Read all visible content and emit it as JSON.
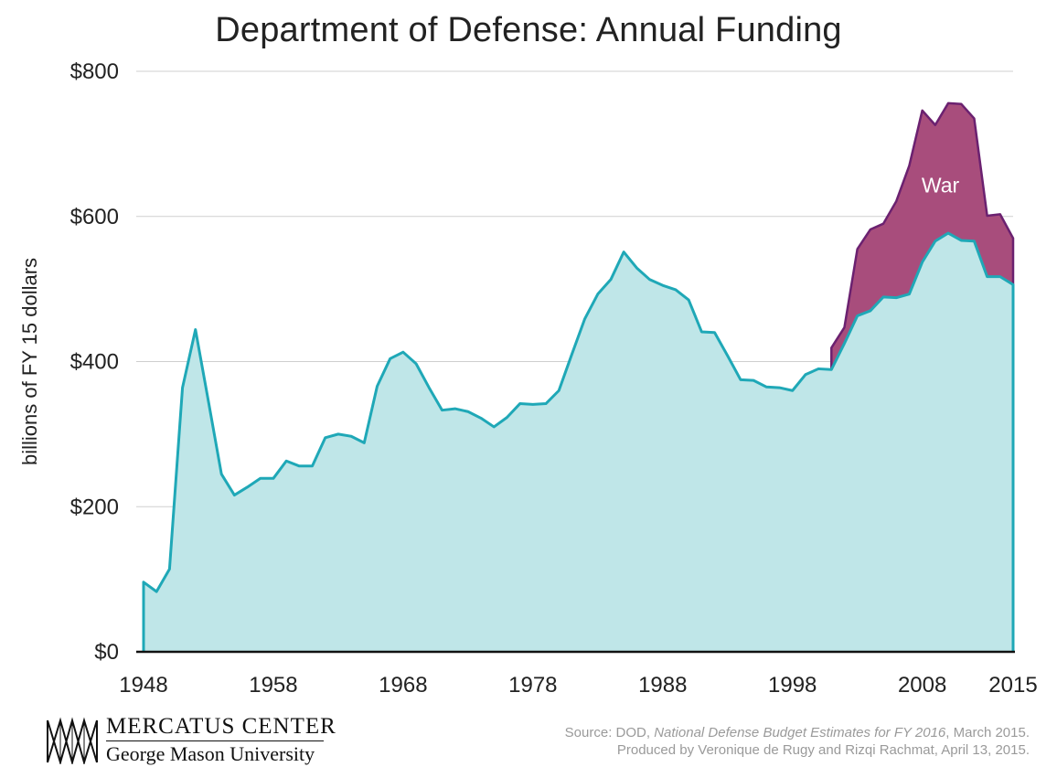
{
  "title": "Department of Defense: Annual Funding",
  "logo": {
    "line1": "MERCATUS CENTER",
    "line2": "George Mason University"
  },
  "source": {
    "prefix": "Source: DOD, ",
    "publication": "National Defense Budget Estimates for FY 2016",
    "suffix": ", March 2015.",
    "line2": "Produced by Veronique de Rugy and Rizqi Rachmat, April 13, 2015."
  },
  "colors": {
    "base_fill": "#bfe6e8",
    "base_line": "#1fa8b7",
    "war_fill": "#a84d7c",
    "war_line": "#6b2170",
    "grid": "#cfcfcf",
    "axis": "#111111"
  },
  "chart_data": {
    "type": "area",
    "title": "Department of Defense: Annual Funding",
    "ylabel": "billions of FY 15 dollars",
    "xlabel": "",
    "xlim": [
      1948,
      2015
    ],
    "ylim": [
      0,
      800
    ],
    "grid": true,
    "y_ticks": [
      "$0",
      "$200",
      "$400",
      "$600",
      "$800"
    ],
    "y_tick_values": [
      0,
      200,
      400,
      600,
      800
    ],
    "x_ticks": [
      "1948",
      "1958",
      "1968",
      "1978",
      "1988",
      "1998",
      "2008",
      "2015"
    ],
    "x_tick_values": [
      1948,
      1958,
      1968,
      1978,
      1988,
      1998,
      2008,
      2015
    ],
    "annotations": [
      {
        "text": "War",
        "x": 2009.4,
        "y": 643
      }
    ],
    "x": [
      1948,
      1949,
      1950,
      1951,
      1952,
      1953,
      1954,
      1955,
      1956,
      1957,
      1958,
      1959,
      1960,
      1961,
      1962,
      1963,
      1964,
      1965,
      1966,
      1967,
      1968,
      1969,
      1970,
      1971,
      1972,
      1973,
      1974,
      1975,
      1976,
      1977,
      1978,
      1979,
      1980,
      1981,
      1982,
      1983,
      1984,
      1985,
      1986,
      1987,
      1988,
      1989,
      1990,
      1991,
      1992,
      1993,
      1994,
      1995,
      1996,
      1997,
      1998,
      1999,
      2000,
      2001,
      2002,
      2003,
      2004,
      2005,
      2006,
      2007,
      2008,
      2009,
      2010,
      2011,
      2012,
      2013,
      2014,
      2015
    ],
    "series": [
      {
        "name": "",
        "values": [
          96,
          83,
          114,
          364,
          444,
          345,
          245,
          216,
          227,
          239,
          239,
          263,
          256,
          256,
          295,
          300,
          297,
          288,
          366,
          404,
          413,
          397,
          364,
          333,
          335,
          331,
          322,
          310,
          323,
          342,
          341,
          342,
          360,
          410,
          459,
          493,
          513,
          551,
          529,
          513,
          505,
          499,
          485,
          441,
          440,
          408,
          375,
          374,
          365,
          364,
          360,
          382,
          390,
          389,
          425,
          463,
          470,
          489,
          488,
          493,
          537,
          566,
          577,
          567,
          566,
          517,
          517,
          506
        ]
      },
      {
        "name": "War",
        "values": [
          null,
          null,
          null,
          null,
          null,
          null,
          null,
          null,
          null,
          null,
          null,
          null,
          null,
          null,
          null,
          null,
          null,
          null,
          null,
          null,
          null,
          null,
          null,
          null,
          null,
          null,
          null,
          null,
          null,
          null,
          null,
          null,
          null,
          null,
          null,
          null,
          null,
          null,
          null,
          null,
          null,
          null,
          null,
          null,
          null,
          null,
          null,
          null,
          null,
          null,
          null,
          null,
          null,
          30,
          22,
          92,
          112,
          101,
          133,
          177,
          209,
          160,
          179,
          188,
          169,
          84,
          86,
          64
        ]
      }
    ]
  }
}
